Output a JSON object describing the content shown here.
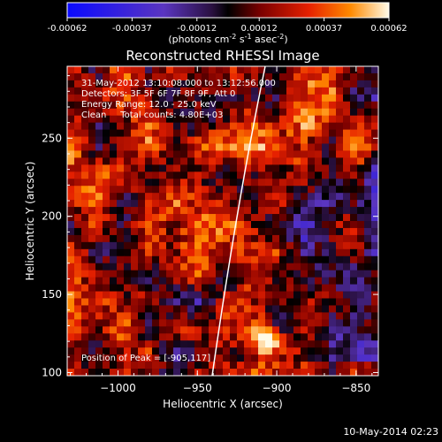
{
  "colorbar": {
    "tick_labels": [
      "-0.00062",
      "-0.00037",
      "-0.00012",
      "0.00012",
      "0.00037",
      "0.00062"
    ],
    "unit": "(photons cm",
    "unit_sup1": "-2",
    "unit_mid": " s",
    "unit_sup2": "-1",
    "unit_mid2": " asec",
    "unit_sup3": "-2",
    "unit_end": ")"
  },
  "chart_data": {
    "type": "heatmap",
    "title": "Reconstructed RHESSI Image",
    "xlabel": "Heliocentric X (arcsec)",
    "ylabel": "Heliocentric Y (arcsec)",
    "xlim": [
      -1032,
      -836
    ],
    "ylim": [
      98,
      296
    ],
    "x_ticks": [
      -1000,
      -950,
      -900,
      -850
    ],
    "y_ticks": [
      100,
      150,
      200,
      250
    ],
    "x_tick_labels": [
      "−1000",
      "−950",
      "−900",
      "−850"
    ],
    "y_tick_labels": [
      "100",
      "150",
      "200",
      "250"
    ],
    "color_range": [
      -0.00062,
      0.00062
    ],
    "peak_position": [
      -905,
      117
    ],
    "annotations": [
      "31-May-2012 13:10:08.000 to 13:12:56.000",
      "Detectors: 3F 5F 6F 7F 8F 9F, Att 0",
      "Energy Range: 12.0 - 25.0 keV",
      "Clean     Total counts: 4.80E+03"
    ],
    "peak_label": "Position of Peak = [-905,117]",
    "footer_date": "10-May-2014 02:23"
  }
}
